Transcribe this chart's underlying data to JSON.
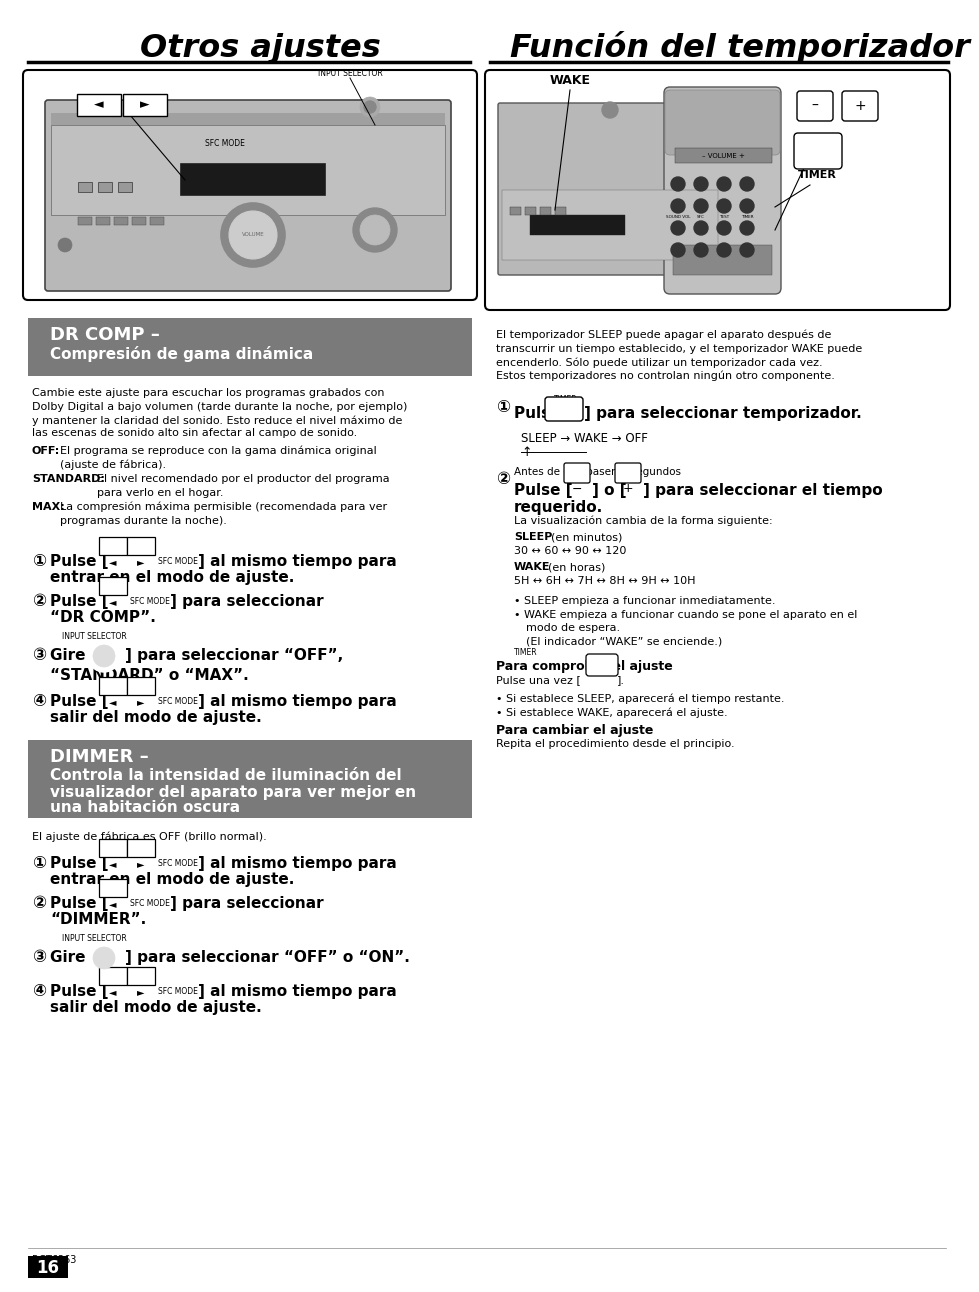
{
  "page_bg": "#ffffff",
  "left_title": "Otros ajustes",
  "right_title": "Función del temporizador",
  "dr_comp_header_bg": "#7a7a7a",
  "dr_comp_title": "DR COMP –",
  "dr_comp_subtitle": "Compresión de gama dinámica",
  "dimmer_header_bg": "#7a7a7a",
  "dimmer_title": "DIMMER –",
  "footer_left": "RGT6363",
  "footer_page": "16"
}
